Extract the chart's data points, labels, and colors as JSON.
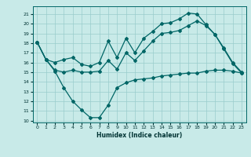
{
  "xlabel": "Humidex (Indice chaleur)",
  "background_color": "#c8eae8",
  "grid_color": "#99cccc",
  "line_color": "#006666",
  "xlim": [
    -0.5,
    23.5
  ],
  "ylim": [
    9.8,
    21.8
  ],
  "yticks": [
    10,
    11,
    12,
    13,
    14,
    15,
    16,
    17,
    18,
    19,
    20,
    21
  ],
  "xticks": [
    0,
    1,
    2,
    3,
    4,
    5,
    6,
    7,
    8,
    9,
    10,
    11,
    12,
    13,
    14,
    15,
    16,
    17,
    18,
    19,
    20,
    21,
    22,
    23
  ],
  "line1_x": [
    0,
    1,
    2,
    3,
    4,
    5,
    6,
    7,
    8,
    9,
    10,
    11,
    12,
    13,
    14,
    15,
    16,
    17,
    18,
    19,
    20,
    21,
    22,
    23
  ],
  "line1_y": [
    18.1,
    16.3,
    16.0,
    16.3,
    16.5,
    15.8,
    15.6,
    16.0,
    18.2,
    16.5,
    18.5,
    17.0,
    18.5,
    19.2,
    20.0,
    20.1,
    20.5,
    21.1,
    21.0,
    19.9,
    18.9,
    17.5,
    16.0,
    15.0
  ],
  "line2_x": [
    0,
    1,
    2,
    3,
    4,
    5,
    6,
    7,
    8,
    9,
    10,
    11,
    12,
    13,
    14,
    15,
    16,
    17,
    18,
    19,
    20,
    21,
    22,
    23
  ],
  "line2_y": [
    18.1,
    16.3,
    15.2,
    15.0,
    15.2,
    15.0,
    15.0,
    15.1,
    16.2,
    15.3,
    17.0,
    16.2,
    17.2,
    18.2,
    19.0,
    19.1,
    19.3,
    19.8,
    20.3,
    19.8,
    18.9,
    17.4,
    15.9,
    14.9
  ],
  "line3_x": [
    0,
    1,
    2,
    3,
    4,
    5,
    6,
    7,
    8,
    9,
    10,
    11,
    12,
    13,
    14,
    15,
    16,
    17,
    18,
    19,
    20,
    21,
    22,
    23
  ],
  "line3_y": [
    18.1,
    16.3,
    15.1,
    13.4,
    12.0,
    11.1,
    10.3,
    10.3,
    11.6,
    13.4,
    13.9,
    14.2,
    14.3,
    14.4,
    14.6,
    14.7,
    14.8,
    14.9,
    14.9,
    15.1,
    15.2,
    15.2,
    15.1,
    14.9
  ]
}
